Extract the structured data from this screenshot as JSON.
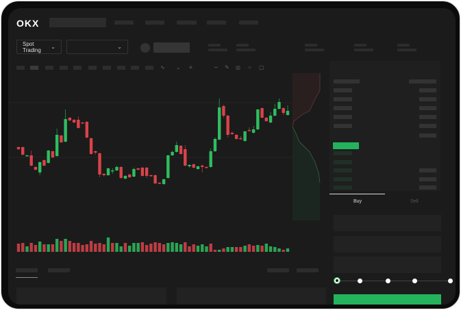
{
  "header": {
    "logo": "OKX",
    "nav_count": 5
  },
  "market_bar": {
    "mode_dropdown": "Spot Trading",
    "pair_dropdown": ""
  },
  "order_panel": {
    "tabs": [
      {
        "label": "Buy",
        "active": true
      },
      {
        "label": "Sell",
        "active": false
      }
    ],
    "slider_value": 0,
    "slider_stops": 5
  },
  "colors": {
    "up": "#2ebd5f",
    "down": "#d9434a",
    "background": "#1b1b1b",
    "buy_button": "#24b35c"
  },
  "icons": [
    "indicator-icon",
    "line-tool-icon",
    "fibonacci-icon",
    "brush-icon",
    "measure-icon",
    "settings-icon",
    "fullscreen-icon",
    "orderbook-both-icon",
    "orderbook-bids-icon",
    "orderbook-asks-icon",
    "chevron-down-icon"
  ],
  "chart_data": {
    "type": "candlestick",
    "candles": [
      [
        97,
        94,
        98,
        93
      ],
      [
        97,
        86,
        98,
        85
      ],
      [
        84,
        85,
        86,
        84
      ],
      [
        85,
        70,
        92,
        69
      ],
      [
        68,
        64,
        69,
        63
      ],
      [
        60,
        75,
        76,
        56
      ],
      [
        78,
        70,
        79,
        69
      ],
      [
        74,
        92,
        93,
        73
      ],
      [
        91,
        82,
        92,
        81
      ],
      [
        84,
        115,
        124,
        83
      ],
      [
        114,
        104,
        115,
        103
      ],
      [
        105,
        138,
        152,
        104
      ],
      [
        140,
        136,
        141,
        135
      ],
      [
        137,
        133,
        138,
        132
      ],
      [
        137,
        125,
        142,
        124
      ],
      [
        133,
        132,
        134,
        131
      ],
      [
        134,
        111,
        135,
        110
      ],
      [
        110,
        87,
        111,
        86
      ],
      [
        91,
        89,
        92,
        86
      ],
      [
        88,
        57,
        89,
        53
      ],
      [
        58,
        56,
        59,
        54
      ],
      [
        56,
        66,
        67,
        55
      ],
      [
        62,
        63,
        66,
        58
      ],
      [
        63,
        68,
        70,
        62
      ],
      [
        68,
        52,
        69,
        51
      ],
      [
        51,
        55,
        56,
        50
      ],
      [
        57,
        53,
        58,
        52
      ],
      [
        54,
        65,
        67,
        53
      ],
      [
        66,
        64,
        67,
        63
      ],
      [
        67,
        55,
        68,
        54
      ],
      [
        67,
        55,
        68,
        52
      ],
      [
        56,
        55,
        57,
        54
      ],
      [
        56,
        44,
        57,
        43
      ],
      [
        45,
        44,
        46,
        43
      ],
      [
        43,
        50,
        51,
        42
      ],
      [
        52,
        85,
        86,
        51
      ],
      [
        85,
        90,
        92,
        84
      ],
      [
        90,
        100,
        105,
        89
      ],
      [
        99,
        87,
        100,
        86
      ],
      [
        94,
        70,
        100,
        69
      ],
      [
        69,
        71,
        72,
        67
      ],
      [
        72,
        67,
        73,
        66
      ],
      [
        65,
        69,
        70,
        64
      ],
      [
        70,
        68,
        72,
        60
      ],
      [
        68,
        67,
        69,
        66
      ],
      [
        68,
        91,
        95,
        67
      ],
      [
        91,
        109,
        111,
        90
      ],
      [
        108,
        155,
        168,
        107
      ],
      [
        157,
        143,
        159,
        140
      ],
      [
        143,
        115,
        144,
        111
      ],
      [
        118,
        116,
        120,
        115
      ],
      [
        115,
        109,
        116,
        108
      ],
      [
        110,
        109,
        113,
        108
      ],
      [
        106,
        120,
        121,
        105
      ],
      [
        122,
        121,
        126,
        120
      ],
      [
        118,
        123,
        128,
        117
      ],
      [
        123,
        152,
        153,
        122
      ],
      [
        154,
        140,
        155,
        139
      ],
      [
        140,
        135,
        141,
        134
      ],
      [
        133,
        143,
        148,
        132
      ],
      [
        143,
        153,
        160,
        142
      ],
      [
        153,
        163,
        168,
        152
      ],
      [
        154,
        147,
        155,
        144
      ],
      [
        144,
        150,
        158,
        143
      ]
    ],
    "volumes": [
      [
        12,
        "d"
      ],
      [
        13,
        "d"
      ],
      [
        8,
        "u"
      ],
      [
        13,
        "d"
      ],
      [
        10,
        "d"
      ],
      [
        15,
        "u"
      ],
      [
        11,
        "d"
      ],
      [
        11,
        "u"
      ],
      [
        11,
        "d"
      ],
      [
        19,
        "u"
      ],
      [
        16,
        "d"
      ],
      [
        19,
        "u"
      ],
      [
        16,
        "d"
      ],
      [
        13,
        "d"
      ],
      [
        13,
        "d"
      ],
      [
        10,
        "d"
      ],
      [
        11,
        "d"
      ],
      [
        16,
        "d"
      ],
      [
        12,
        "d"
      ],
      [
        13,
        "d"
      ],
      [
        11,
        "d"
      ],
      [
        21,
        "u"
      ],
      [
        13,
        "d"
      ],
      [
        13,
        "u"
      ],
      [
        8,
        "u"
      ],
      [
        13,
        "d"
      ],
      [
        9,
        "u"
      ],
      [
        13,
        "u"
      ],
      [
        13,
        "u"
      ],
      [
        14,
        "d"
      ],
      [
        10,
        "d"
      ],
      [
        12,
        "d"
      ],
      [
        14,
        "d"
      ],
      [
        13,
        "d"
      ],
      [
        11,
        "d"
      ],
      [
        13,
        "u"
      ],
      [
        14,
        "u"
      ],
      [
        13,
        "u"
      ],
      [
        11,
        "u"
      ],
      [
        14,
        "d"
      ],
      [
        8,
        "d"
      ],
      [
        11,
        "d"
      ],
      [
        9,
        "u"
      ],
      [
        11,
        "u"
      ],
      [
        8,
        "u"
      ],
      [
        12,
        "d"
      ],
      [
        3,
        "d"
      ],
      [
        3,
        "u"
      ],
      [
        5,
        "d"
      ],
      [
        7,
        "u"
      ],
      [
        7,
        "u"
      ],
      [
        7,
        "d"
      ],
      [
        7,
        "d"
      ],
      [
        9,
        "u"
      ],
      [
        11,
        "d"
      ],
      [
        9,
        "d"
      ],
      [
        10,
        "u"
      ],
      [
        9,
        "d"
      ],
      [
        12,
        "u"
      ],
      [
        8,
        "u"
      ],
      [
        7,
        "u"
      ],
      [
        5,
        "u"
      ],
      [
        3,
        "d"
      ],
      [
        5,
        "u"
      ]
    ]
  }
}
